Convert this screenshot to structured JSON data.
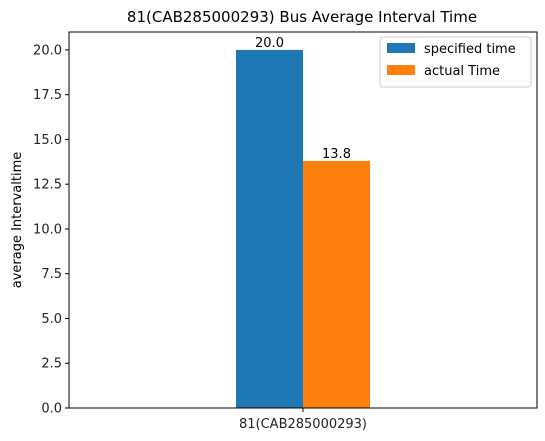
{
  "chart_data": {
    "type": "bar",
    "title": "81(CAB285000293) Bus Average Interval Time",
    "xlabel": "",
    "ylabel": "average Intervaltime",
    "categories": [
      "81(CAB285000293)"
    ],
    "series": [
      {
        "name": "specified time",
        "values": [
          20.0
        ],
        "color": "#1f77b4",
        "label": "20.0"
      },
      {
        "name": "actual Time",
        "values": [
          13.8
        ],
        "color": "#ff7f0e",
        "label": "13.8"
      }
    ],
    "ylim": [
      0,
      21
    ],
    "yticks": [
      "0.0",
      "2.5",
      "5.0",
      "7.5",
      "10.0",
      "12.5",
      "15.0",
      "17.5",
      "20.0"
    ],
    "grid": false,
    "legend_position": "top-right"
  }
}
